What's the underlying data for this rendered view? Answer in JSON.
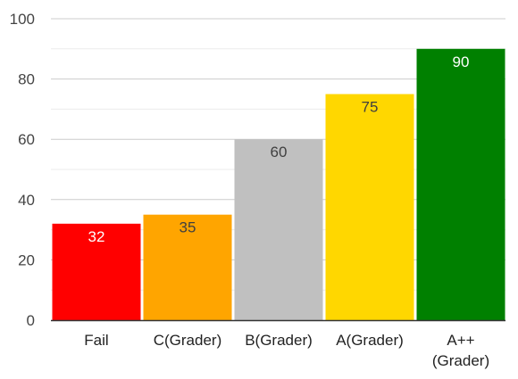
{
  "chart_data": {
    "type": "bar",
    "title": "",
    "xlabel": "",
    "ylabel": "",
    "ylim": [
      0,
      100
    ],
    "yticks": [
      0,
      20,
      40,
      60,
      80,
      100
    ],
    "minor_gridlines": true,
    "legend": "none",
    "categories": [
      {
        "label": [
          "Fail"
        ]
      },
      {
        "label": [
          "C(Grader)"
        ]
      },
      {
        "label": [
          "B(Grader)"
        ]
      },
      {
        "label": [
          "A(Grader)"
        ]
      },
      {
        "label": [
          "A++",
          "(Grader)"
        ]
      }
    ],
    "values": [
      32,
      35,
      60,
      75,
      90
    ],
    "bar_colors": [
      "#ff0000",
      "#ffa500",
      "#c0c0c0",
      "#ffd700",
      "#008000"
    ],
    "label_colors": [
      "#ffffff",
      "#404040",
      "#404040",
      "#404040",
      "#ffffff"
    ],
    "colors": {
      "gridline": "#cccccc",
      "minor_gridline": "#ebebeb",
      "baseline": "#333333",
      "tick_label": "#444444",
      "category_label": "#222222"
    }
  }
}
